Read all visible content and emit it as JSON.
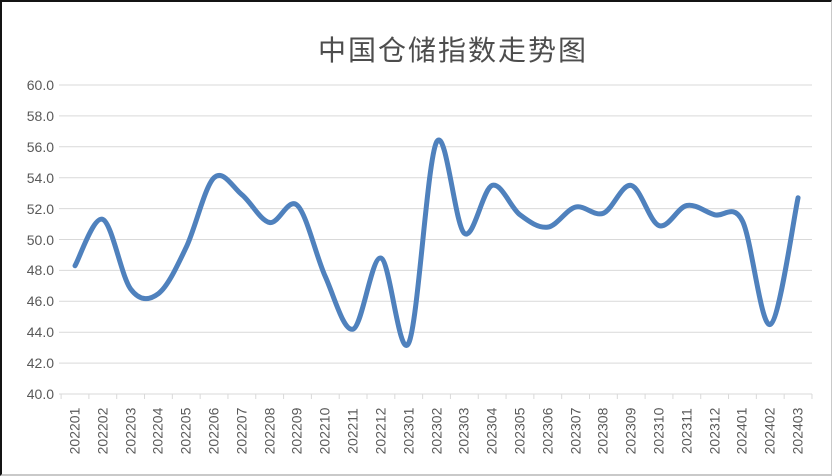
{
  "window": {
    "background": "#ffffff",
    "border_dark": "#141414",
    "border_light": "#c9c9c9"
  },
  "chart_data": {
    "type": "line",
    "title": "中国仓储指数走势图",
    "categories": [
      "202201",
      "202202",
      "202203",
      "202204",
      "202205",
      "202206",
      "202207",
      "202208",
      "202209",
      "202210",
      "202211",
      "202212",
      "202301",
      "202302",
      "202303",
      "202304",
      "202305",
      "202306",
      "202307",
      "202308",
      "202309",
      "202310",
      "202311",
      "202312",
      "202401",
      "202402",
      "202403"
    ],
    "values": [
      48.3,
      51.3,
      46.8,
      46.5,
      49.5,
      54.0,
      52.9,
      51.1,
      52.2,
      47.6,
      44.2,
      48.8,
      43.3,
      56.3,
      50.4,
      53.5,
      51.6,
      50.8,
      52.1,
      51.7,
      53.5,
      50.9,
      52.2,
      51.6,
      51.2,
      44.5,
      52.7
    ],
    "xlabel": "",
    "ylabel": "",
    "ylim": [
      40.0,
      60.0
    ],
    "ytick_step": 2.0,
    "ytick_labels": [
      "60.0",
      "58.0",
      "56.0",
      "54.0",
      "52.0",
      "50.0",
      "48.0",
      "46.0",
      "44.0",
      "42.0",
      "40.0"
    ],
    "x_tick_label_rotation": -90,
    "grid": true,
    "legend": "none",
    "smooth_line": true,
    "line_color": "#4F81BD",
    "line_width": 5,
    "gridline_color": "#D9D9D9",
    "axis_text_color": "#595959",
    "title_color": "#4D4D4D"
  }
}
